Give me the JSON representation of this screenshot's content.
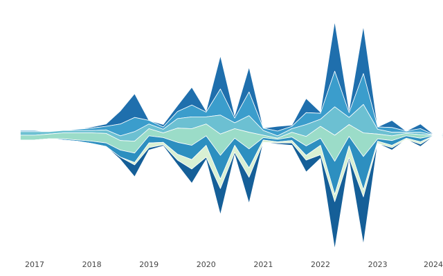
{
  "chart_data": {
    "type": "area",
    "subtype": "streamgraph",
    "baseline": "centered",
    "title": "",
    "xlabel": "",
    "ylabel": "",
    "legend": "none",
    "grid": false,
    "x_start": "2016-10",
    "x_end": "2024-07",
    "x_ticks": [
      "2017",
      "2018",
      "2019",
      "2020",
      "2021",
      "2022",
      "2023",
      "2024"
    ],
    "x": [
      "2016-10",
      "2017-01",
      "2017-04",
      "2017-07",
      "2017-10",
      "2018-01",
      "2018-04",
      "2018-07",
      "2018-10",
      "2019-01",
      "2019-04",
      "2019-07",
      "2019-10",
      "2020-01",
      "2020-04",
      "2020-07",
      "2020-10",
      "2021-01",
      "2021-04",
      "2021-07",
      "2021-10",
      "2022-01",
      "2022-04",
      "2022-07",
      "2022-10",
      "2023-01",
      "2023-04",
      "2023-07",
      "2023-10",
      "2024-01",
      "2024-04",
      "2024-07"
    ],
    "series": [
      {
        "color": "#1f6fad",
        "values": [
          0,
          0,
          0,
          0,
          0,
          1,
          2,
          11,
          20,
          0,
          2,
          5,
          15,
          1,
          28,
          2,
          21,
          0,
          4,
          1,
          12,
          1,
          42,
          2,
          40,
          0,
          6,
          0,
          4,
          0,
          1,
          0
        ]
      },
      {
        "color": "#3b9dcc",
        "values": [
          1,
          1,
          0,
          0,
          1,
          2,
          3,
          10,
          12,
          3,
          2,
          6,
          10,
          4,
          22,
          4,
          20,
          2,
          4,
          2,
          10,
          5,
          30,
          4,
          26,
          2,
          4,
          1,
          3,
          0,
          1,
          0
        ]
      },
      {
        "color": "#6cc0d2",
        "values": [
          3,
          3,
          2,
          2,
          2,
          2,
          3,
          4,
          8,
          4,
          3,
          8,
          10,
          6,
          16,
          5,
          14,
          4,
          2,
          3,
          10,
          6,
          24,
          6,
          24,
          4,
          3,
          1,
          2,
          0,
          1,
          0
        ]
      },
      {
        "color": "#9bdcc8",
        "values": [
          4,
          4,
          4,
          5,
          6,
          7,
          8,
          8,
          10,
          6,
          4,
          12,
          14,
          10,
          18,
          8,
          14,
          2,
          1,
          4,
          8,
          10,
          22,
          10,
          20,
          4,
          4,
          2,
          3,
          0,
          1,
          0
        ]
      },
      {
        "color": "#2d8fc0",
        "values": [
          0,
          0,
          0,
          1,
          1,
          2,
          3,
          6,
          8,
          6,
          4,
          10,
          12,
          8,
          20,
          6,
          16,
          2,
          2,
          3,
          8,
          6,
          28,
          8,
          28,
          2,
          4,
          2,
          3,
          0,
          1,
          0
        ]
      },
      {
        "color": "#d9f0d3",
        "values": [
          0,
          0,
          0,
          0,
          0,
          0,
          0,
          0,
          2,
          4,
          2,
          5,
          8,
          10,
          8,
          6,
          8,
          2,
          1,
          2,
          4,
          8,
          6,
          10,
          6,
          2,
          2,
          1,
          2,
          0,
          1,
          0
        ]
      },
      {
        "color": "#155f98",
        "values": [
          0,
          0,
          0,
          0,
          0,
          0,
          0,
          2,
          10,
          2,
          1,
          4,
          12,
          2,
          22,
          2,
          22,
          0,
          1,
          2,
          10,
          3,
          40,
          2,
          40,
          0,
          2,
          0,
          2,
          0,
          1,
          0
        ]
      }
    ]
  }
}
